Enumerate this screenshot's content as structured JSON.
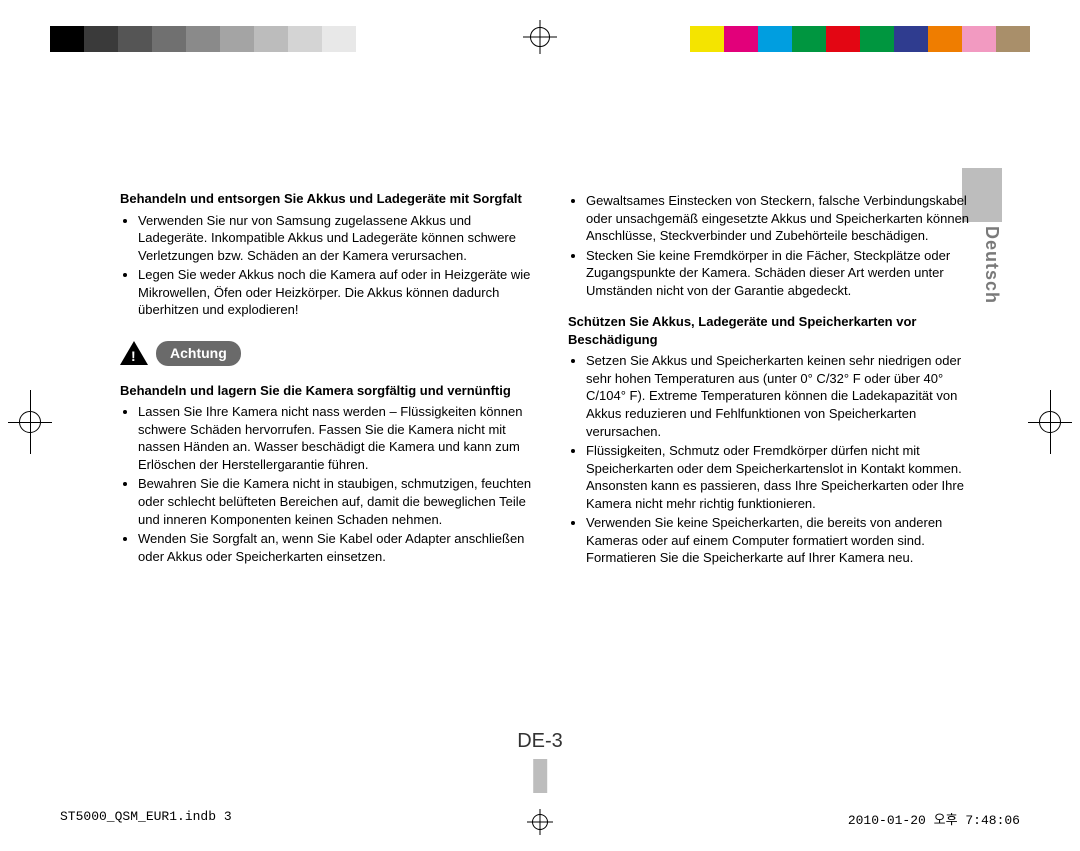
{
  "colorbar": {
    "left": [
      "#000000",
      "#3a3a3a",
      "#555555",
      "#707070",
      "#8a8a8a",
      "#a4a4a4",
      "#bcbcbc",
      "#d4d4d4",
      "#e8e8e8",
      "#ffffff"
    ],
    "right": [
      "#f4e400",
      "#e2007a",
      "#009ee0",
      "#009640",
      "#e30613",
      "#00963f",
      "#2f3c8f",
      "#ef7d00",
      "#f29ac1",
      "#a98f6a"
    ]
  },
  "language_tab": "Deutsch",
  "page_number": "DE-3",
  "achtung_label": "Achtung",
  "col1": {
    "s1_title": "Behandeln und entsorgen Sie Akkus und Ladegeräte mit Sorgfalt",
    "s1_items": [
      "Verwenden Sie nur von Samsung zugelassene Akkus und Ladegeräte. Inkompatible Akkus und Ladegeräte können schwere Verletzungen bzw. Schäden an der Kamera verursachen.",
      "Legen Sie weder Akkus noch die Kamera auf oder in Heizgeräte wie Mikrowellen, Öfen oder Heizkörper. Die Akkus können dadurch überhitzen und explodieren!"
    ],
    "s2_title": "Behandeln und lagern Sie die Kamera sorgfältig und vernünftig",
    "s2_items": [
      "Lassen Sie Ihre Kamera nicht nass werden – Flüssigkeiten können schwere Schäden hervorrufen. Fassen Sie die Kamera nicht mit nassen Händen an. Wasser beschädigt die Kamera und kann zum Erlöschen der Herstellergarantie führen.",
      "Bewahren Sie die Kamera nicht in staubigen, schmutzigen, feuchten oder schlecht belüfteten Bereichen auf, damit die beweglichen Teile und inneren Komponenten keinen Schaden nehmen.",
      "Wenden Sie Sorgfalt an, wenn Sie Kabel oder Adapter anschließen oder Akkus oder Speicherkarten einsetzen."
    ]
  },
  "col2": {
    "lead_items": [
      "Gewaltsames Einstecken von Steckern, falsche Verbindungskabel oder unsachgemäß eingesetzte Akkus und Speicherkarten können Anschlüsse, Steckverbinder und Zubehörteile beschädigen.",
      "Stecken Sie keine Fremdkörper in die Fächer, Steckplätze oder Zugangspunkte der Kamera. Schäden dieser Art werden unter Umständen nicht von der Garantie abgedeckt."
    ],
    "s3_title": "Schützen Sie Akkus, Ladegeräte und Speicherkarten vor Beschädigung",
    "s3_items": [
      "Setzen Sie Akkus und Speicherkarten keinen sehr niedrigen oder sehr hohen Temperaturen aus (unter 0° C/32° F oder über 40° C/104° F). Extreme Temperaturen können die Ladekapazität von Akkus reduzieren und Fehlfunktionen von Speicherkarten verursachen.",
      "Flüssigkeiten, Schmutz oder Fremdkörper dürfen nicht mit Speicherkarten oder dem Speicherkartenslot in Kontakt kommen. Ansonsten kann es passieren, dass Ihre Speicherkarten oder Ihre Kamera nicht mehr richtig funktionieren.",
      "Verwenden Sie keine Speicherkarten, die bereits von anderen Kameras oder auf einem Computer formatiert worden sind. Formatieren Sie die Speicherkarte auf Ihrer Kamera neu."
    ]
  },
  "footer": {
    "left": "ST5000_QSM_EUR1.indb   3",
    "right": "2010-01-20   오후 7:48:06"
  }
}
